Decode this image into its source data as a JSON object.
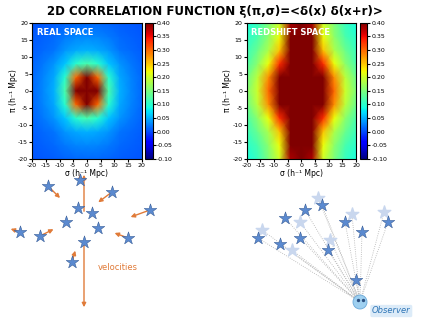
{
  "title": "2D CORRELATION FUNCTION ξ(π,σ)=<δ(x) δ(x+r)>",
  "chart_data": [
    {
      "type": "heatmap",
      "label": "REAL SPACE",
      "xlabel": "σ (h⁻¹ Mpc)",
      "ylabel": "π (h⁻¹ Mpc)",
      "x": [
        -20,
        -16,
        -12,
        -8,
        -4,
        0,
        4,
        8,
        12,
        16,
        20
      ],
      "y": [
        -20,
        -16,
        -12,
        -8,
        -4,
        0,
        4,
        8,
        12,
        16,
        20
      ],
      "cells": [
        [
          0.005,
          0.007,
          0.009,
          0.012,
          0.014,
          0.015,
          0.014,
          0.012,
          0.009,
          0.007,
          0.005
        ],
        [
          0.007,
          0.01,
          0.015,
          0.022,
          0.028,
          0.03,
          0.028,
          0.022,
          0.015,
          0.01,
          0.007
        ],
        [
          0.009,
          0.015,
          0.02,
          0.035,
          0.045,
          0.05,
          0.045,
          0.035,
          0.02,
          0.015,
          0.009
        ],
        [
          0.012,
          0.022,
          0.035,
          0.06,
          0.1,
          0.12,
          0.1,
          0.06,
          0.035,
          0.022,
          0.012
        ],
        [
          0.014,
          0.028,
          0.045,
          0.1,
          0.3,
          0.6,
          0.3,
          0.1,
          0.045,
          0.028,
          0.014
        ],
        [
          0.015,
          0.03,
          0.05,
          0.12,
          0.6,
          1.0,
          0.6,
          0.12,
          0.05,
          0.03,
          0.015
        ],
        [
          0.014,
          0.028,
          0.045,
          0.1,
          0.3,
          0.6,
          0.3,
          0.1,
          0.045,
          0.028,
          0.014
        ],
        [
          0.012,
          0.022,
          0.035,
          0.06,
          0.1,
          0.12,
          0.1,
          0.06,
          0.035,
          0.022,
          0.012
        ],
        [
          0.009,
          0.015,
          0.02,
          0.035,
          0.045,
          0.05,
          0.045,
          0.035,
          0.02,
          0.015,
          0.009
        ],
        [
          0.007,
          0.01,
          0.015,
          0.022,
          0.028,
          0.03,
          0.028,
          0.022,
          0.015,
          0.01,
          0.007
        ],
        [
          0.005,
          0.007,
          0.009,
          0.012,
          0.014,
          0.015,
          0.014,
          0.012,
          0.009,
          0.007,
          0.005
        ]
      ],
      "xlim": [
        -20,
        20
      ],
      "ylim": [
        -20,
        20
      ],
      "xticks": [
        -20,
        -15,
        -10,
        -5,
        0,
        5,
        10,
        15,
        20
      ],
      "yticks": [
        -20,
        -15,
        -10,
        -5,
        0,
        5,
        10,
        15,
        20
      ],
      "colorbar_range": [
        -0.1,
        0.4
      ],
      "colorbar_ticks": [
        {
          "value": -0.1,
          "label": "-0.10"
        },
        {
          "value": -0.05,
          "label": "-0.05"
        },
        {
          "value": 0.0,
          "label": "0.00"
        },
        {
          "value": 0.05,
          "label": "0.05"
        },
        {
          "value": 0.1,
          "label": "0.10"
        },
        {
          "value": 0.15,
          "label": "0.15"
        },
        {
          "value": 0.2,
          "label": "0.20"
        },
        {
          "value": 0.25,
          "label": "0.25"
        },
        {
          "value": 0.3,
          "label": "0.30"
        },
        {
          "value": 0.35,
          "label": "0.35"
        },
        {
          "value": 0.4,
          "label": "0.40"
        }
      ]
    },
    {
      "type": "heatmap",
      "label": "REDSHIFT SPACE",
      "xlabel": "σ (h⁻¹ Mpc)",
      "ylabel": "π (h⁻¹ Mpc)",
      "x": [
        -20,
        -16,
        -12,
        -8,
        -4,
        0,
        4,
        8,
        12,
        16,
        20
      ],
      "y": [
        -20,
        -16,
        -12,
        -8,
        -4,
        0,
        4,
        8,
        12,
        16,
        20
      ],
      "cells": [
        [
          0.09,
          0.11,
          0.15,
          0.2,
          0.38,
          0.8,
          0.38,
          0.2,
          0.15,
          0.11,
          0.09
        ],
        [
          0.1,
          0.12,
          0.16,
          0.22,
          0.4,
          0.9,
          0.4,
          0.22,
          0.16,
          0.12,
          0.1
        ],
        [
          0.11,
          0.14,
          0.18,
          0.25,
          0.45,
          1.0,
          0.45,
          0.25,
          0.18,
          0.14,
          0.11
        ],
        [
          0.12,
          0.16,
          0.22,
          0.33,
          0.6,
          1.0,
          0.6,
          0.33,
          0.22,
          0.16,
          0.12
        ],
        [
          0.14,
          0.19,
          0.28,
          0.45,
          0.8,
          1.0,
          0.8,
          0.45,
          0.28,
          0.19,
          0.14
        ],
        [
          0.15,
          0.2,
          0.3,
          0.5,
          0.9,
          1.0,
          0.9,
          0.5,
          0.3,
          0.2,
          0.15
        ],
        [
          0.14,
          0.19,
          0.28,
          0.45,
          0.8,
          1.0,
          0.8,
          0.45,
          0.28,
          0.19,
          0.14
        ],
        [
          0.12,
          0.16,
          0.22,
          0.33,
          0.6,
          1.0,
          0.6,
          0.33,
          0.22,
          0.16,
          0.12
        ],
        [
          0.11,
          0.14,
          0.18,
          0.25,
          0.45,
          1.0,
          0.45,
          0.25,
          0.18,
          0.14,
          0.11
        ],
        [
          0.1,
          0.12,
          0.16,
          0.22,
          0.4,
          0.9,
          0.4,
          0.22,
          0.16,
          0.12,
          0.1
        ],
        [
          0.09,
          0.11,
          0.15,
          0.2,
          0.38,
          0.8,
          0.38,
          0.2,
          0.15,
          0.11,
          0.09
        ]
      ],
      "xlim": [
        -20,
        20
      ],
      "ylim": [
        -20,
        20
      ],
      "xticks": [
        -20,
        -15,
        -10,
        -5,
        0,
        5,
        10,
        15,
        20
      ],
      "yticks": [
        -20,
        -15,
        -10,
        -5,
        0,
        5,
        10,
        15,
        20
      ],
      "colorbar_range": [
        -0.1,
        0.4
      ],
      "colorbar_ticks": [
        {
          "value": -0.1,
          "label": "-0.10"
        },
        {
          "value": -0.05,
          "label": "-0.05"
        },
        {
          "value": 0.0,
          "label": "0.00"
        },
        {
          "value": 0.05,
          "label": "0.05"
        },
        {
          "value": 0.1,
          "label": "0.10"
        },
        {
          "value": 0.15,
          "label": "0.15"
        },
        {
          "value": 0.2,
          "label": "0.20"
        },
        {
          "value": 0.25,
          "label": "0.25"
        },
        {
          "value": 0.3,
          "label": "0.30"
        },
        {
          "value": 0.35,
          "label": "0.35"
        },
        {
          "value": 0.4,
          "label": "0.40"
        }
      ]
    }
  ],
  "illustration": {
    "left_label": "velocities",
    "right_label": "Observer"
  }
}
